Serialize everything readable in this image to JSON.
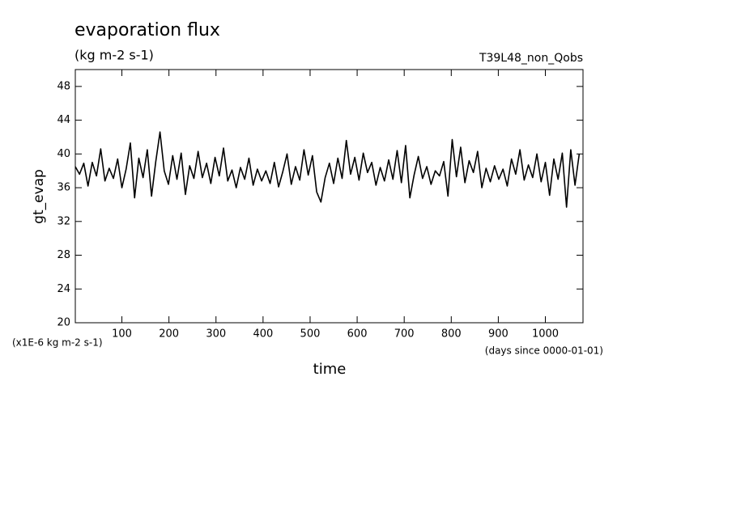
{
  "chart_data": {
    "type": "line",
    "title": "evaporation flux",
    "subtitle": "(kg m-2 s-1)",
    "annotation": "T39L48_non_Qobs",
    "ylabel": "gt_evap",
    "xlabel": "time",
    "yunit": "(x1E-6 kg m-2 s-1)",
    "xunit": "(days since 0000-01-01)",
    "color": "#000000",
    "xlim": [
      1,
      1080
    ],
    "ylim": [
      20,
      50
    ],
    "xticks": [
      100,
      200,
      300,
      400,
      500,
      600,
      700,
      800,
      900,
      1000
    ],
    "yticks": [
      20,
      24,
      28,
      32,
      36,
      40,
      44,
      48
    ],
    "x": [
      1,
      10,
      19,
      28,
      37,
      46,
      55,
      64,
      73,
      82,
      91,
      100,
      109,
      118,
      127,
      136,
      145,
      154,
      163,
      172,
      181,
      190,
      199,
      208,
      217,
      226,
      235,
      244,
      253,
      262,
      271,
      280,
      289,
      298,
      307,
      316,
      325,
      334,
      343,
      352,
      361,
      370,
      379,
      388,
      397,
      406,
      415,
      424,
      433,
      442,
      451,
      460,
      469,
      478,
      487,
      496,
      505,
      514,
      523,
      532,
      541,
      550,
      559,
      568,
      577,
      586,
      595,
      604,
      613,
      622,
      631,
      640,
      649,
      658,
      667,
      676,
      685,
      694,
      703,
      712,
      721,
      730,
      739,
      748,
      757,
      766,
      775,
      784,
      793,
      802,
      811,
      820,
      829,
      838,
      847,
      856,
      865,
      874,
      883,
      892,
      901,
      910,
      919,
      928,
      937,
      946,
      955,
      964,
      973,
      982,
      991,
      1000,
      1009,
      1018,
      1027,
      1036,
      1045,
      1054,
      1063,
      1072
    ],
    "values": [
      38.5,
      37.6,
      38.9,
      36.2,
      39.0,
      37.4,
      40.6,
      36.8,
      38.3,
      37.1,
      39.4,
      36.0,
      38.2,
      41.3,
      34.8,
      39.5,
      37.2,
      40.5,
      35.0,
      39.1,
      42.6,
      38.0,
      36.4,
      39.8,
      37.0,
      40.1,
      35.2,
      38.6,
      37.1,
      40.3,
      37.2,
      38.9,
      36.5,
      39.6,
      37.4,
      40.7,
      36.8,
      38.1,
      36.0,
      38.4,
      37.0,
      39.5,
      36.3,
      38.2,
      36.8,
      38.0,
      36.5,
      39.0,
      36.1,
      37.9,
      40.0,
      36.4,
      38.5,
      36.9,
      40.5,
      37.5,
      39.8,
      35.5,
      34.3,
      37.2,
      38.9,
      36.5,
      39.5,
      37.1,
      41.6,
      37.6,
      39.6,
      36.9,
      40.1,
      37.8,
      39.0,
      36.3,
      38.4,
      36.8,
      39.3,
      37.0,
      40.4,
      36.6,
      41.0,
      34.8,
      37.5,
      39.7,
      37.1,
      38.5,
      36.4,
      38.0,
      37.4,
      39.1,
      35.0,
      41.7,
      37.3,
      40.8,
      36.6,
      39.2,
      37.8,
      40.3,
      36.0,
      38.3,
      36.7,
      38.6,
      37.0,
      38.2,
      36.2,
      39.4,
      37.6,
      40.5,
      36.9,
      38.7,
      37.2,
      40.0,
      36.7,
      39.0,
      35.1,
      39.4,
      37.0,
      40.1,
      33.7,
      40.5,
      36.3,
      40.0
    ]
  }
}
